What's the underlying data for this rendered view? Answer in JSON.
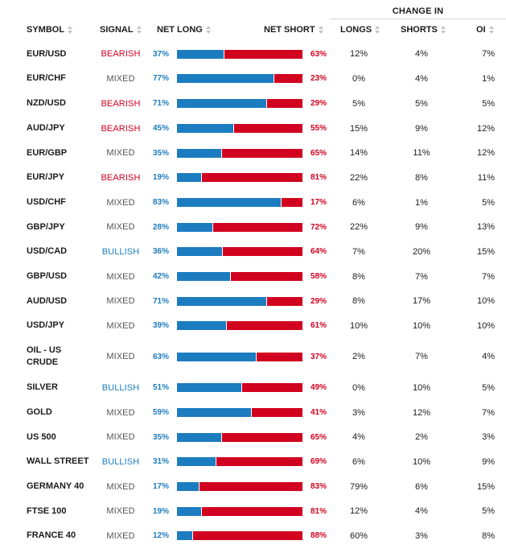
{
  "header": {
    "change_in": "CHANGE IN",
    "symbol": "SYMBOL",
    "signal": "SIGNAL",
    "net_long": "NET LONG",
    "net_short": "NET SHORT",
    "longs": "LONGS",
    "shorts": "SHORTS",
    "oi": "OI"
  },
  "colors": {
    "long": "#1c7cc0",
    "short": "#d1021f",
    "mixed": "#555555"
  },
  "rows": [
    {
      "symbol": "EUR/USD",
      "signal": "BEARISH",
      "net_long": 37,
      "net_short": 63,
      "longs": "12%",
      "shorts": "4%",
      "oi": "7%"
    },
    {
      "symbol": "EUR/CHF",
      "signal": "MIXED",
      "net_long": 77,
      "net_short": 23,
      "longs": "0%",
      "shorts": "4%",
      "oi": "1%"
    },
    {
      "symbol": "NZD/USD",
      "signal": "BEARISH",
      "net_long": 71,
      "net_short": 29,
      "longs": "5%",
      "shorts": "5%",
      "oi": "5%"
    },
    {
      "symbol": "AUD/JPY",
      "signal": "BEARISH",
      "net_long": 45,
      "net_short": 55,
      "longs": "15%",
      "shorts": "9%",
      "oi": "12%"
    },
    {
      "symbol": "EUR/GBP",
      "signal": "MIXED",
      "net_long": 35,
      "net_short": 65,
      "longs": "14%",
      "shorts": "11%",
      "oi": "12%"
    },
    {
      "symbol": "EUR/JPY",
      "signal": "BEARISH",
      "net_long": 19,
      "net_short": 81,
      "longs": "22%",
      "shorts": "8%",
      "oi": "11%"
    },
    {
      "symbol": "USD/CHF",
      "signal": "MIXED",
      "net_long": 83,
      "net_short": 17,
      "longs": "6%",
      "shorts": "1%",
      "oi": "5%"
    },
    {
      "symbol": "GBP/JPY",
      "signal": "MIXED",
      "net_long": 28,
      "net_short": 72,
      "longs": "22%",
      "shorts": "9%",
      "oi": "13%"
    },
    {
      "symbol": "USD/CAD",
      "signal": "BULLISH",
      "net_long": 36,
      "net_short": 64,
      "longs": "7%",
      "shorts": "20%",
      "oi": "15%"
    },
    {
      "symbol": "GBP/USD",
      "signal": "MIXED",
      "net_long": 42,
      "net_short": 58,
      "longs": "8%",
      "shorts": "7%",
      "oi": "7%"
    },
    {
      "symbol": "AUD/USD",
      "signal": "MIXED",
      "net_long": 71,
      "net_short": 29,
      "longs": "8%",
      "shorts": "17%",
      "oi": "10%"
    },
    {
      "symbol": "USD/JPY",
      "signal": "MIXED",
      "net_long": 39,
      "net_short": 61,
      "longs": "10%",
      "shorts": "10%",
      "oi": "10%"
    },
    {
      "symbol": "OIL - US CRUDE",
      "signal": "MIXED",
      "net_long": 63,
      "net_short": 37,
      "longs": "2%",
      "shorts": "7%",
      "oi": "4%"
    },
    {
      "symbol": "SILVER",
      "signal": "BULLISH",
      "net_long": 51,
      "net_short": 49,
      "longs": "0%",
      "shorts": "10%",
      "oi": "5%"
    },
    {
      "symbol": "GOLD",
      "signal": "MIXED",
      "net_long": 59,
      "net_short": 41,
      "longs": "3%",
      "shorts": "12%",
      "oi": "7%"
    },
    {
      "symbol": "US 500",
      "signal": "MIXED",
      "net_long": 35,
      "net_short": 65,
      "longs": "4%",
      "shorts": "2%",
      "oi": "3%"
    },
    {
      "symbol": "WALL STREET",
      "signal": "BULLISH",
      "net_long": 31,
      "net_short": 69,
      "longs": "6%",
      "shorts": "10%",
      "oi": "9%"
    },
    {
      "symbol": "GERMANY 40",
      "signal": "MIXED",
      "net_long": 17,
      "net_short": 83,
      "longs": "79%",
      "shorts": "6%",
      "oi": "15%"
    },
    {
      "symbol": "FTSE 100",
      "signal": "MIXED",
      "net_long": 19,
      "net_short": 81,
      "longs": "12%",
      "shorts": "4%",
      "oi": "5%"
    },
    {
      "symbol": "FRANCE 40",
      "signal": "MIXED",
      "net_long": 12,
      "net_short": 88,
      "longs": "60%",
      "shorts": "3%",
      "oi": "8%"
    }
  ]
}
